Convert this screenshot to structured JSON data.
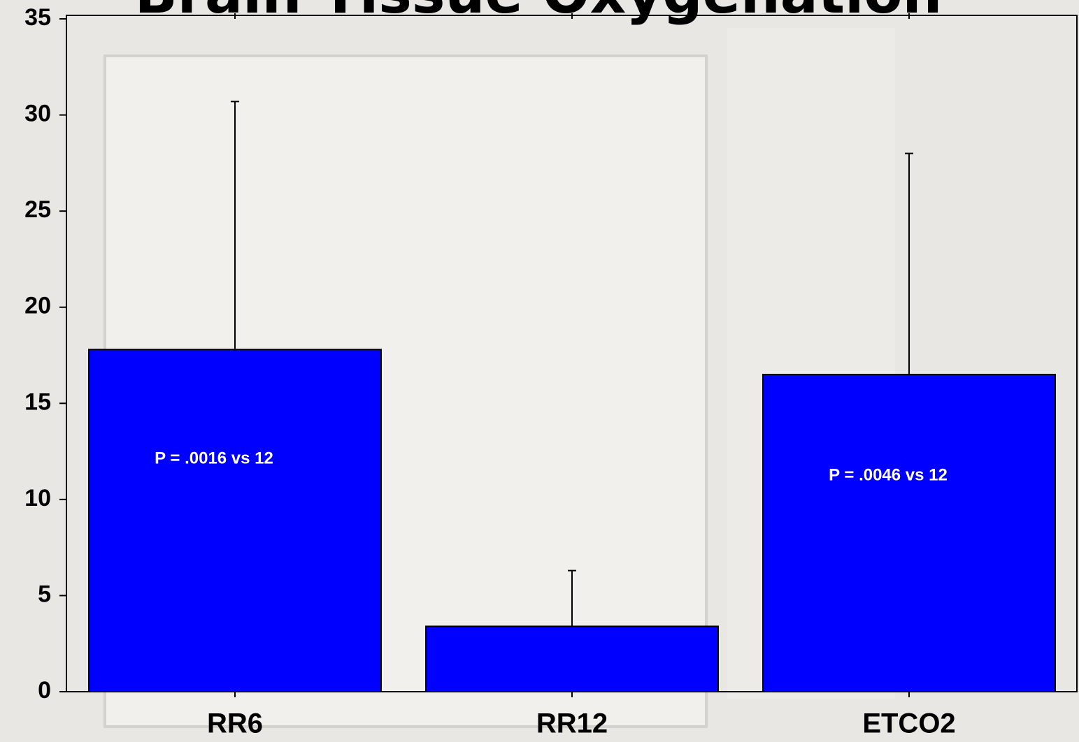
{
  "chart_data": {
    "type": "bar",
    "title": "Brain Tissue Oxygenation",
    "categories": [
      "RR6",
      "RR12",
      "ETCO2"
    ],
    "values": [
      17.8,
      3.4,
      16.5
    ],
    "errors": [
      12.9,
      2.9,
      11.5
    ],
    "color": "#0000ff",
    "annotations": [
      "P = .0016 vs 12",
      null,
      "P = .0046 vs 12"
    ],
    "ylim": [
      0,
      35
    ],
    "yticks": [
      0,
      5,
      10,
      15,
      20,
      25,
      30,
      35
    ]
  }
}
